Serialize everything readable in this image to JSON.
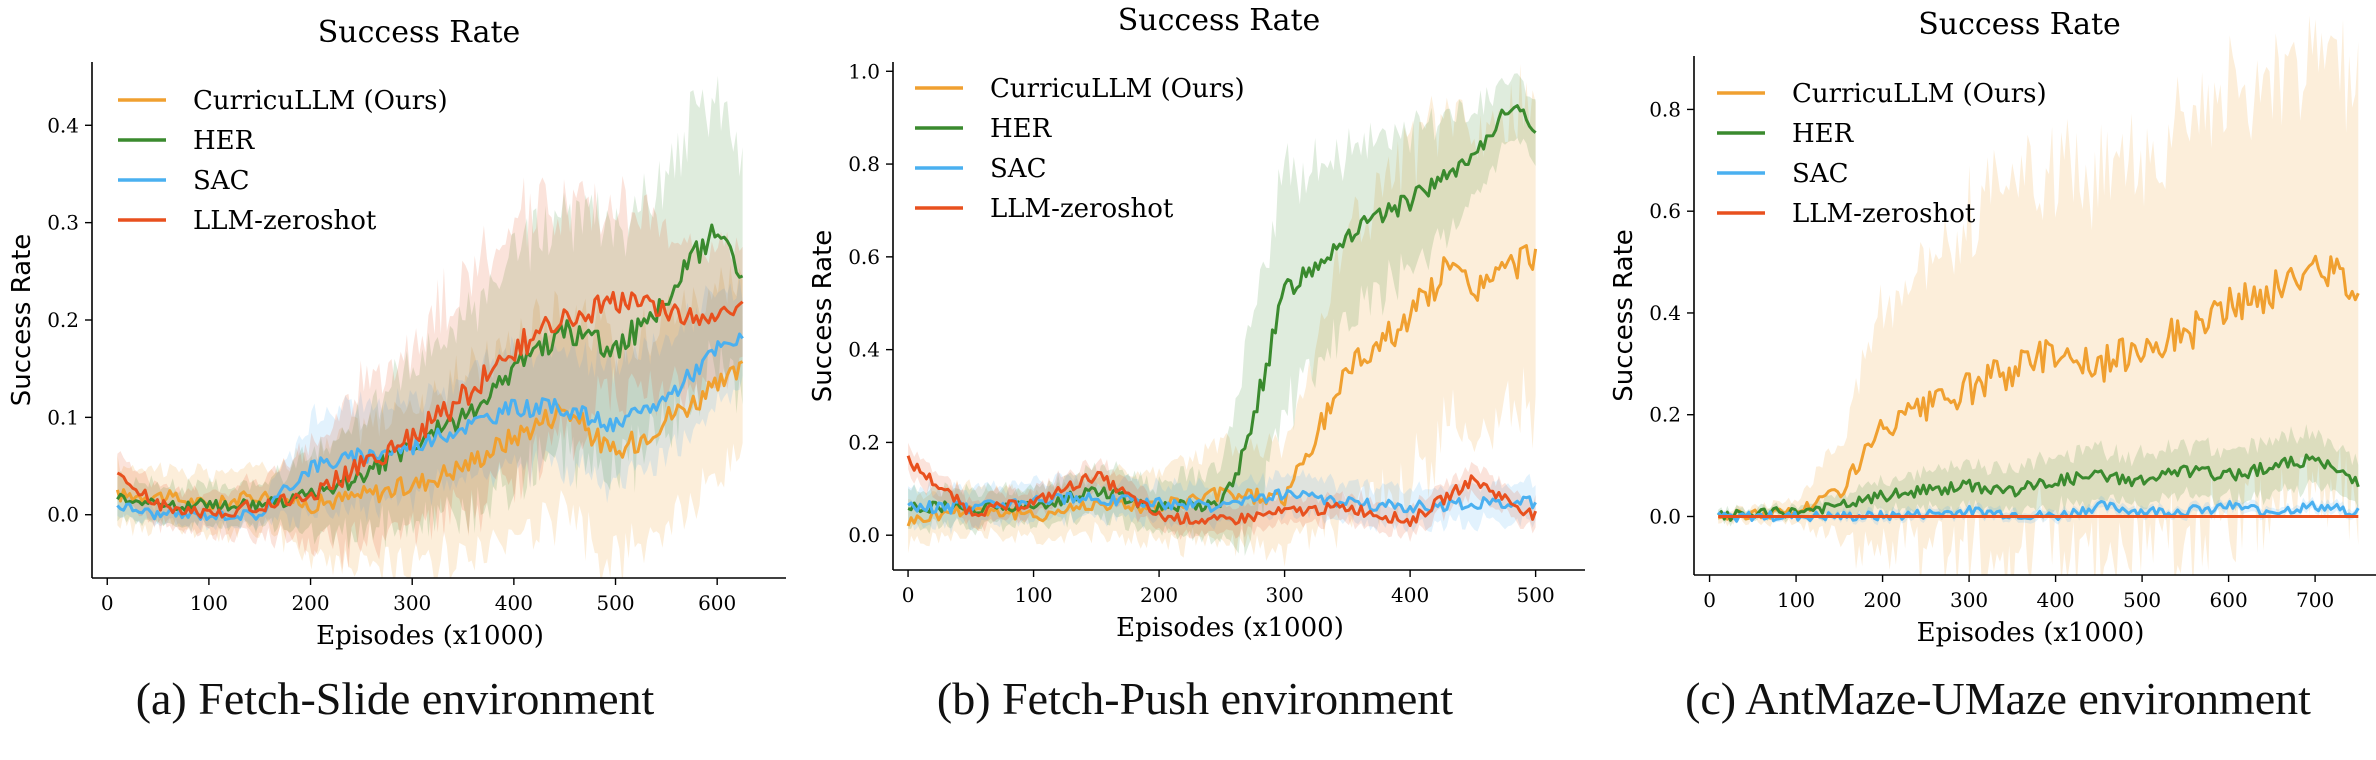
{
  "colors": {
    "curricullm": "#f0a030",
    "her": "#3a8a2e",
    "sac": "#4ab0f0",
    "llm_zeroshot": "#e8501e",
    "axis": "#000000"
  },
  "captions": [
    "(a) Fetch-Slide environment",
    "(b) Fetch-Push environment",
    "(c) AntMaze-UMaze environment"
  ],
  "chart_data": [
    {
      "type": "line",
      "title": "Success Rate",
      "xlabel": "Episodes (x1000)",
      "ylabel": "Success Rate",
      "xlim": [
        -15,
        650
      ],
      "ylim": [
        -0.065,
        0.465
      ],
      "xticks": [
        0,
        100,
        200,
        300,
        400,
        500,
        600
      ],
      "yticks": [
        0.0,
        0.1,
        0.2,
        0.3,
        0.4
      ],
      "ytick_labels": [
        "0.0",
        "0.1",
        "0.2",
        "0.3",
        "0.4"
      ],
      "legend": "top-left",
      "grid": false,
      "shaded_bands": true,
      "series": [
        {
          "name": "CurricuLLM (Ours)",
          "x": [
            10,
            50,
            100,
            150,
            200,
            250,
            300,
            350,
            400,
            450,
            500,
            550,
            600,
            625
          ],
          "y": [
            0.02,
            0.02,
            0.01,
            0.02,
            0.01,
            0.02,
            0.03,
            0.05,
            0.08,
            0.11,
            0.06,
            0.1,
            0.13,
            0.15
          ],
          "band": [
            0.03,
            0.03,
            0.03,
            0.03,
            0.05,
            0.07,
            0.08,
            0.09,
            0.1,
            0.11,
            0.11,
            0.11,
            0.1,
            0.09
          ]
        },
        {
          "name": "HER",
          "x": [
            10,
            50,
            100,
            150,
            200,
            250,
            300,
            350,
            400,
            450,
            500,
            550,
            600,
            625
          ],
          "y": [
            0.02,
            0.01,
            0.01,
            0.01,
            0.02,
            0.04,
            0.07,
            0.1,
            0.15,
            0.19,
            0.17,
            0.22,
            0.3,
            0.24
          ],
          "band": [
            0.02,
            0.02,
            0.02,
            0.02,
            0.04,
            0.06,
            0.08,
            0.1,
            0.11,
            0.12,
            0.12,
            0.13,
            0.14,
            0.12
          ]
        },
        {
          "name": "SAC",
          "x": [
            10,
            50,
            100,
            150,
            200,
            250,
            300,
            350,
            400,
            450,
            500,
            550,
            600,
            625
          ],
          "y": [
            0.01,
            0.0,
            0.0,
            0.0,
            0.05,
            0.06,
            0.07,
            0.09,
            0.11,
            0.11,
            0.09,
            0.12,
            0.17,
            0.18
          ],
          "band": [
            0.01,
            0.01,
            0.01,
            0.01,
            0.05,
            0.05,
            0.05,
            0.05,
            0.06,
            0.06,
            0.06,
            0.06,
            0.06,
            0.05
          ]
        },
        {
          "name": "LLM-zeroshot",
          "x": [
            10,
            50,
            100,
            150,
            200,
            250,
            300,
            350,
            400,
            450,
            500,
            550,
            600,
            625
          ],
          "y": [
            0.04,
            0.01,
            0.0,
            0.01,
            0.02,
            0.05,
            0.08,
            0.12,
            0.17,
            0.2,
            0.22,
            0.21,
            0.2,
            0.22
          ],
          "band": [
            0.02,
            0.02,
            0.02,
            0.03,
            0.05,
            0.08,
            0.1,
            0.12,
            0.13,
            0.12,
            0.1,
            0.08,
            0.07,
            0.06
          ]
        }
      ]
    },
    {
      "type": "line",
      "title": "Success Rate",
      "xlabel": "Episodes (x1000)",
      "ylabel": "Success Rate",
      "xlim": [
        -12,
        525
      ],
      "ylim": [
        -0.075,
        1.02
      ],
      "xticks": [
        0,
        100,
        200,
        300,
        400,
        500
      ],
      "yticks": [
        0.0,
        0.2,
        0.4,
        0.6,
        0.8,
        1.0
      ],
      "ytick_labels": [
        "0.0",
        "0.2",
        "0.4",
        "0.6",
        "0.8",
        "1.0"
      ],
      "legend": "top-left",
      "grid": false,
      "shaded_bands": true,
      "series": [
        {
          "name": "CurricuLLM (Ours)",
          "x": [
            0,
            50,
            100,
            150,
            200,
            250,
            300,
            320,
            350,
            400,
            430,
            450,
            500
          ],
          "y": [
            0.03,
            0.06,
            0.04,
            0.07,
            0.06,
            0.09,
            0.08,
            0.18,
            0.36,
            0.47,
            0.58,
            0.53,
            0.61
          ],
          "band": [
            0.05,
            0.05,
            0.05,
            0.06,
            0.08,
            0.1,
            0.12,
            0.2,
            0.3,
            0.35,
            0.33,
            0.32,
            0.33
          ]
        },
        {
          "name": "HER",
          "x": [
            0,
            50,
            100,
            150,
            200,
            250,
            270,
            300,
            350,
            400,
            450,
            480,
            500
          ],
          "y": [
            0.06,
            0.06,
            0.06,
            0.1,
            0.06,
            0.07,
            0.19,
            0.53,
            0.65,
            0.72,
            0.81,
            0.93,
            0.88
          ],
          "band": [
            0.04,
            0.04,
            0.04,
            0.05,
            0.05,
            0.08,
            0.2,
            0.25,
            0.18,
            0.15,
            0.1,
            0.06,
            0.06
          ]
        },
        {
          "name": "SAC",
          "x": [
            0,
            50,
            100,
            150,
            200,
            250,
            300,
            350,
            400,
            450,
            500
          ],
          "y": [
            0.06,
            0.06,
            0.08,
            0.08,
            0.07,
            0.06,
            0.09,
            0.07,
            0.06,
            0.07,
            0.07
          ],
          "band": [
            0.04,
            0.04,
            0.04,
            0.04,
            0.04,
            0.04,
            0.04,
            0.04,
            0.04,
            0.04,
            0.04
          ]
        },
        {
          "name": "LLM-zeroshot",
          "x": [
            0,
            50,
            100,
            150,
            200,
            250,
            300,
            350,
            400,
            450,
            500
          ],
          "y": [
            0.16,
            0.05,
            0.07,
            0.13,
            0.04,
            0.03,
            0.05,
            0.06,
            0.03,
            0.12,
            0.04
          ],
          "band": [
            0.03,
            0.03,
            0.03,
            0.03,
            0.03,
            0.03,
            0.03,
            0.03,
            0.03,
            0.03,
            0.03
          ]
        }
      ]
    },
    {
      "type": "line",
      "title": "Success Rate",
      "xlabel": "Episodes (x1000)",
      "ylabel": "Success Rate",
      "xlim": [
        -18,
        760
      ],
      "ylim": [
        -0.115,
        0.905
      ],
      "xticks": [
        0,
        100,
        200,
        300,
        400,
        500,
        600,
        700
      ],
      "yticks": [
        0.0,
        0.2,
        0.4,
        0.6,
        0.8
      ],
      "ytick_labels": [
        "0.0",
        "0.2",
        "0.4",
        "0.6",
        "0.8"
      ],
      "legend": "top-left",
      "grid": false,
      "shaded_bands": true,
      "series": [
        {
          "name": "CurricuLLM (Ours)",
          "x": [
            10,
            100,
            150,
            200,
            250,
            300,
            350,
            400,
            450,
            500,
            550,
            600,
            650,
            700,
            750
          ],
          "y": [
            0.0,
            0.01,
            0.05,
            0.17,
            0.21,
            0.25,
            0.29,
            0.33,
            0.29,
            0.34,
            0.36,
            0.41,
            0.44,
            0.49,
            0.46
          ],
          "band": [
            0.01,
            0.02,
            0.1,
            0.25,
            0.3,
            0.33,
            0.35,
            0.36,
            0.37,
            0.38,
            0.39,
            0.4,
            0.4,
            0.4,
            0.4
          ]
        },
        {
          "name": "HER",
          "x": [
            10,
            100,
            150,
            200,
            250,
            300,
            350,
            400,
            450,
            500,
            550,
            600,
            650,
            700,
            750
          ],
          "y": [
            0.0,
            0.01,
            0.02,
            0.04,
            0.05,
            0.06,
            0.05,
            0.07,
            0.08,
            0.07,
            0.09,
            0.08,
            0.1,
            0.11,
            0.07
          ],
          "band": [
            0.01,
            0.01,
            0.02,
            0.03,
            0.04,
            0.04,
            0.04,
            0.05,
            0.05,
            0.05,
            0.05,
            0.05,
            0.05,
            0.05,
            0.04
          ]
        },
        {
          "name": "SAC",
          "x": [
            10,
            100,
            200,
            300,
            400,
            450,
            500,
            550,
            600,
            650,
            700,
            750
          ],
          "y": [
            0.0,
            0.0,
            0.0,
            0.01,
            0.0,
            0.02,
            0.01,
            0.01,
            0.02,
            0.01,
            0.02,
            0.01
          ],
          "band": [
            0.005,
            0.005,
            0.01,
            0.01,
            0.01,
            0.01,
            0.01,
            0.01,
            0.01,
            0.01,
            0.01,
            0.01
          ]
        },
        {
          "name": "LLM-zeroshot",
          "x": [
            10,
            750
          ],
          "y": [
            0.0,
            0.0
          ],
          "band": [
            0.0,
            0.0
          ]
        }
      ]
    }
  ]
}
